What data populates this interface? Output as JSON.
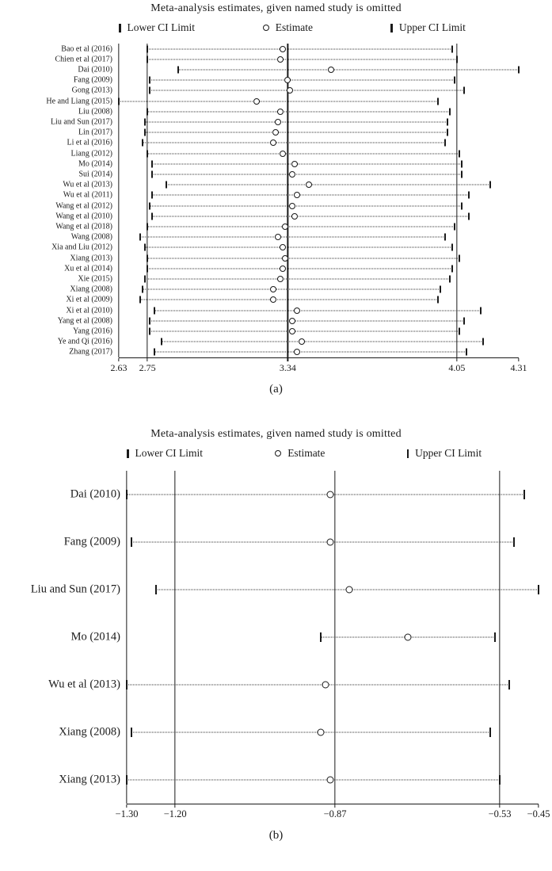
{
  "colors": {
    "ink": "#1a1a1a",
    "background": "#ffffff"
  },
  "chart_data": [
    {
      "type": "scatter",
      "variant": "leave-one-out-sensitivity",
      "title": "Meta-analysis estimates, given named study is omitted",
      "panel_label": "(a)",
      "legend": {
        "lower": "Lower CI Limit",
        "estimate": "Estimate",
        "upper": "Upper CI Limit"
      },
      "xlim": [
        2.63,
        4.31
      ],
      "xtick_values": [
        2.63,
        2.75,
        3.34,
        4.05,
        4.31
      ],
      "xtick_labels": [
        "2.63",
        "2.75",
        "3.34",
        "4.05",
        "4.31"
      ],
      "vlines": [
        2.63,
        2.75,
        3.34,
        4.05
      ],
      "grid": false,
      "studies": [
        "Bao et al (2016)",
        "Chien et al (2017)",
        "Dai (2010)",
        "Fang (2009)",
        "Gong (2013)",
        "He and Liang (2015)",
        "Liu (2008)",
        "Liu and Sun (2017)",
        "Lin (2017)",
        "Li et al (2016)",
        "Liang (2012)",
        "Mo (2014)",
        "Sui (2014)",
        "Wu et al (2013)",
        "Wu et al (2011)",
        "Wang et al (2012)",
        "Wang et al (2010)",
        "Wang et al (2018)",
        "Wang (2008)",
        "Xia and Liu (2012)",
        "Xiang (2013)",
        "Xu et al (2014)",
        "Xie (2015)",
        "Xiang (2008)",
        "Xi et al (2009)",
        "Xi et al (2010)",
        "Yang et al (2008)",
        "Yang (2016)",
        "Ye and Qi (2016)",
        "Zhang (2017)"
      ],
      "lower": [
        2.75,
        2.75,
        2.88,
        2.76,
        2.76,
        2.63,
        2.75,
        2.74,
        2.74,
        2.73,
        2.75,
        2.77,
        2.77,
        2.83,
        2.77,
        2.76,
        2.77,
        2.75,
        2.72,
        2.74,
        2.75,
        2.75,
        2.74,
        2.73,
        2.72,
        2.78,
        2.76,
        2.76,
        2.81,
        2.78
      ],
      "estimate": [
        3.32,
        3.31,
        3.52,
        3.34,
        3.35,
        3.21,
        3.31,
        3.3,
        3.29,
        3.28,
        3.32,
        3.37,
        3.36,
        3.43,
        3.38,
        3.36,
        3.37,
        3.33,
        3.3,
        3.32,
        3.33,
        3.32,
        3.31,
        3.28,
        3.28,
        3.38,
        3.36,
        3.36,
        3.4,
        3.38
      ],
      "upper": [
        4.03,
        4.05,
        4.31,
        4.04,
        4.08,
        3.97,
        4.02,
        4.01,
        4.01,
        4.0,
        4.06,
        4.07,
        4.07,
        4.19,
        4.1,
        4.07,
        4.1,
        4.04,
        4.0,
        4.03,
        4.06,
        4.03,
        4.02,
        3.98,
        3.97,
        4.15,
        4.08,
        4.06,
        4.16,
        4.09
      ]
    },
    {
      "type": "scatter",
      "variant": "leave-one-out-sensitivity",
      "title": "Meta-analysis estimates, given named study is omitted",
      "panel_label": "(b)",
      "legend": {
        "lower": "Lower CI Limit",
        "estimate": "Estimate",
        "upper": "Upper CI Limit"
      },
      "xlim": [
        -1.3,
        -0.45
      ],
      "xtick_values": [
        -1.3,
        -1.2,
        -0.87,
        -0.53,
        -0.45
      ],
      "xtick_labels": [
        "−1.30",
        "−1.20",
        "−0.87",
        "−0.53",
        "−0.45"
      ],
      "vlines": [
        -1.3,
        -1.2,
        -0.87,
        -0.53
      ],
      "grid": false,
      "studies": [
        "Dai (2010)",
        "Fang (2009)",
        "Liu and Sun (2017)",
        "Mo (2014)",
        "Wu et al (2013)",
        "Xiang (2008)",
        "Xiang (2013)"
      ],
      "lower": [
        -1.3,
        -1.29,
        -1.24,
        -0.9,
        -1.3,
        -1.29,
        -1.3
      ],
      "estimate": [
        -0.88,
        -0.88,
        -0.84,
        -0.72,
        -0.89,
        -0.9,
        -0.88
      ],
      "upper": [
        -0.48,
        -0.5,
        -0.45,
        -0.54,
        -0.51,
        -0.55,
        -0.53
      ]
    }
  ]
}
